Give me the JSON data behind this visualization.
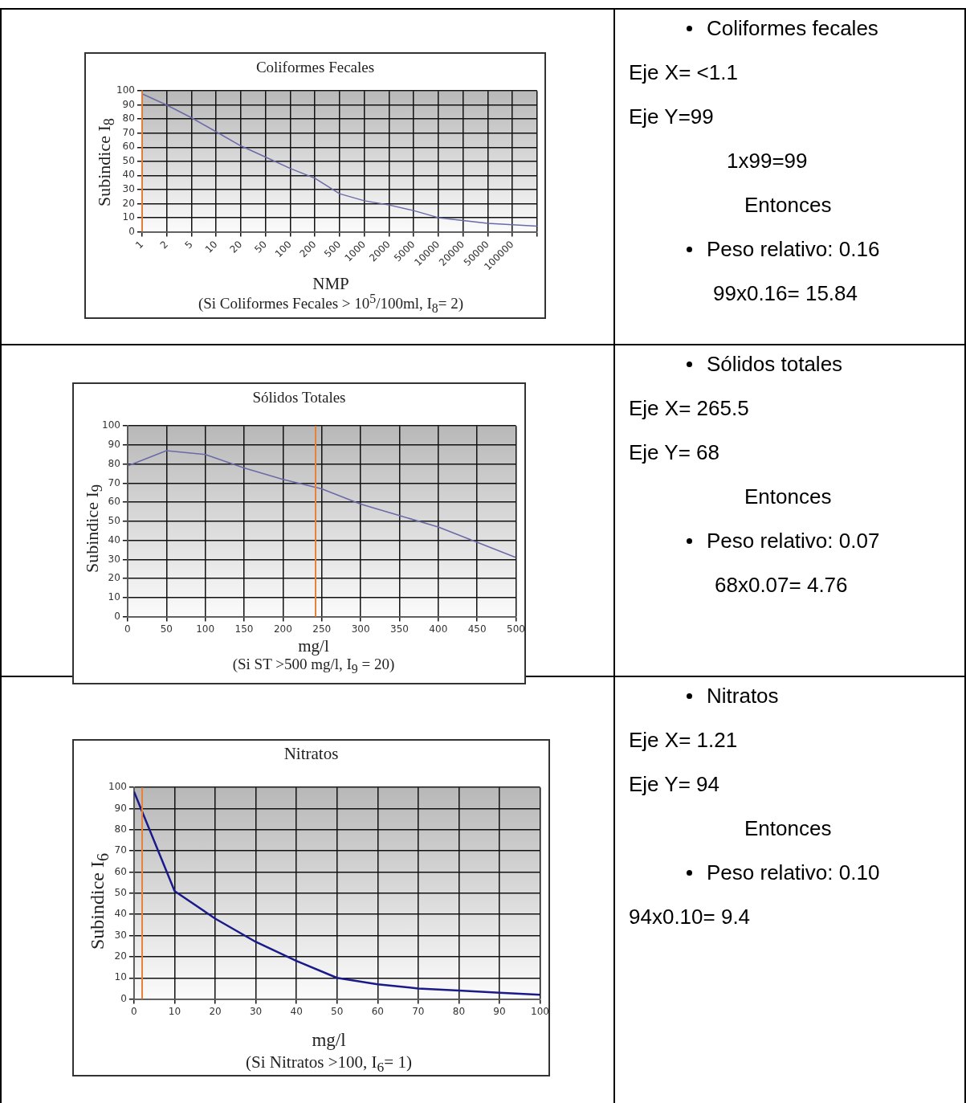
{
  "chart_data": [
    {
      "type": "line",
      "title": "Coliformes Fecales",
      "xlabel": "NMP",
      "ylabel": "Subindice I$_{8}$",
      "annotations": [
        "(Si Coliformes Fecales > 10$^{5}$/100ml, I$_{8}$= 2)"
      ],
      "categories": [
        "1",
        "2",
        "5",
        "10",
        "20",
        "50",
        "100",
        "200",
        "500",
        "1000",
        "2000",
        "5000",
        "10000",
        "20000",
        "50000",
        "100000",
        null
      ],
      "series": [
        {
          "color": "#6a6aa8",
          "values": [
            98,
            90,
            81,
            71,
            61,
            53,
            45,
            38,
            27,
            22,
            19,
            15,
            10,
            8,
            6,
            5,
            4
          ]
        }
      ],
      "ylim": [
        0,
        100
      ],
      "yticks": [
        0,
        10,
        20,
        30,
        40,
        50,
        60,
        70,
        80,
        90,
        100
      ],
      "grid": true,
      "legend": false,
      "marker": "none",
      "ref_lines": [
        {
          "axis": "x",
          "value": "1",
          "color": "#e8823a"
        }
      ]
    },
    {
      "type": "other",
      "title": "Coliformes fecales",
      "annotations": [
        "Eje X= <1.1",
        "Eje Y=99",
        "1x99=99",
        "Entonces",
        "Peso relativo:  0.16",
        "99x0.16= 15.84"
      ]
    },
    {
      "type": "line",
      "title": "Sólidos Totales",
      "xlabel": "mg/l",
      "ylabel": "Subindice I$_{9}$",
      "annotations": [
        "(Si  ST >500 mg/l, I$_{9}$ = 20)"
      ],
      "x": [
        0,
        50,
        100,
        150,
        200,
        250,
        300,
        350,
        400,
        450,
        500
      ],
      "series": [
        {
          "color": "#6a6aa8",
          "values": [
            79,
            87,
            85,
            78,
            72,
            67,
            59,
            53,
            47,
            39,
            31
          ]
        }
      ],
      "xlim": [
        0,
        500
      ],
      "xticks": [
        0,
        50,
        100,
        150,
        200,
        250,
        300,
        350,
        400,
        450,
        500
      ],
      "ylim": [
        0,
        100
      ],
      "yticks": [
        0,
        10,
        20,
        30,
        40,
        50,
        60,
        70,
        80,
        90,
        100
      ],
      "grid": true,
      "legend": false,
      "marker": "none",
      "ref_lines": [
        {
          "axis": "x",
          "value": 242,
          "color": "#e8823a"
        }
      ]
    },
    {
      "type": "other",
      "title": "Sólidos totales",
      "annotations": [
        "Eje X= 265.5",
        "Eje Y= 68",
        "Entonces",
        "Peso relativo:  0.07",
        "68x0.07= 4.76"
      ]
    },
    {
      "type": "line",
      "title": "Nitratos",
      "xlabel": "mg/l",
      "ylabel": "Subindice  I$_{6}$",
      "annotations": [
        "(Si Nitratos >100, I$_{6}$= 1)"
      ],
      "x": [
        0,
        10,
        20,
        30,
        40,
        50,
        60,
        70,
        80,
        90,
        100
      ],
      "series": [
        {
          "color": "#1a1a8a",
          "values": [
            98,
            51,
            38,
            27,
            18,
            10,
            7,
            5,
            4,
            3,
            2
          ]
        }
      ],
      "xlim": [
        0,
        100
      ],
      "xticks": [
        0,
        10,
        20,
        30,
        40,
        50,
        60,
        70,
        80,
        90,
        100
      ],
      "ylim": [
        0,
        100
      ],
      "yticks": [
        0,
        10,
        20,
        30,
        40,
        50,
        60,
        70,
        80,
        90,
        100
      ],
      "grid": true,
      "legend": false,
      "marker": "none",
      "ref_lines": [
        {
          "axis": "x",
          "value": 2,
          "color": "#e8823a"
        }
      ]
    },
    {
      "type": "other",
      "title": "Nitratos",
      "annotations": [
        "Eje X= 1.21",
        "Eje Y= 94",
        "Entonces",
        "Peso relativo:  0.10",
        "94x0.10= 9.4"
      ]
    }
  ]
}
